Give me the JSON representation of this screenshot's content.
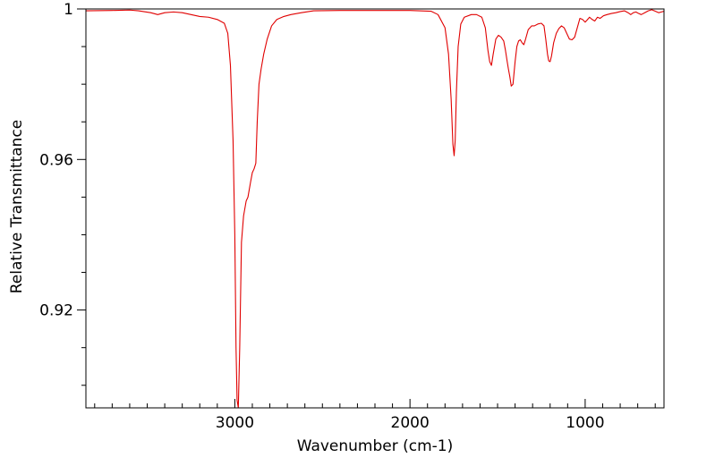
{
  "chart_data": {
    "type": "line",
    "title": "",
    "xlabel": "Wavenumber (cm-1)",
    "ylabel": "Relative Transmittance",
    "xlim": [
      3850,
      550
    ],
    "ylim": [
      0.894,
      1.0
    ],
    "x_reversed": true,
    "grid": false,
    "legend": "none",
    "x_ticks": [
      {
        "value": 3000,
        "label": "3000"
      },
      {
        "value": 2000,
        "label": "2000"
      },
      {
        "value": 1000,
        "label": "1000"
      }
    ],
    "y_ticks": [
      {
        "value": 0.92,
        "label": "0.92"
      },
      {
        "value": 0.96,
        "label": "0.96"
      },
      {
        "value": 1.0,
        "label": "1"
      }
    ],
    "x_minor_step": 100,
    "y_minor_step": 0.01,
    "series": [
      {
        "color": "#e00000",
        "points": [
          [
            3850,
            0.9995
          ],
          [
            3700,
            0.9996
          ],
          [
            3600,
            0.9997
          ],
          [
            3550,
            0.9995
          ],
          [
            3480,
            0.999
          ],
          [
            3440,
            0.9985
          ],
          [
            3400,
            0.999
          ],
          [
            3350,
            0.9992
          ],
          [
            3300,
            0.999
          ],
          [
            3250,
            0.9985
          ],
          [
            3200,
            0.998
          ],
          [
            3150,
            0.9978
          ],
          [
            3100,
            0.9972
          ],
          [
            3060,
            0.9962
          ],
          [
            3040,
            0.9935
          ],
          [
            3025,
            0.985
          ],
          [
            3010,
            0.965
          ],
          [
            3000,
            0.94
          ],
          [
            2993,
            0.91
          ],
          [
            2987,
            0.896
          ],
          [
            2980,
            0.894
          ],
          [
            2972,
            0.91
          ],
          [
            2962,
            0.938
          ],
          [
            2950,
            0.945
          ],
          [
            2935,
            0.949
          ],
          [
            2925,
            0.95
          ],
          [
            2910,
            0.954
          ],
          [
            2900,
            0.9565
          ],
          [
            2890,
            0.9575
          ],
          [
            2880,
            0.959
          ],
          [
            2872,
            0.97
          ],
          [
            2862,
            0.98
          ],
          [
            2850,
            0.984
          ],
          [
            2835,
            0.988
          ],
          [
            2815,
            0.992
          ],
          [
            2790,
            0.9955
          ],
          [
            2760,
            0.9972
          ],
          [
            2720,
            0.998
          ],
          [
            2680,
            0.9985
          ],
          [
            2620,
            0.999
          ],
          [
            2550,
            0.9995
          ],
          [
            2400,
            0.9996
          ],
          [
            2200,
            0.9996
          ],
          [
            2000,
            0.9996
          ],
          [
            1880,
            0.9994
          ],
          [
            1840,
            0.9985
          ],
          [
            1800,
            0.995
          ],
          [
            1780,
            0.988
          ],
          [
            1765,
            0.976
          ],
          [
            1755,
            0.964
          ],
          [
            1748,
            0.961
          ],
          [
            1742,
            0.965
          ],
          [
            1735,
            0.978
          ],
          [
            1725,
            0.99
          ],
          [
            1710,
            0.996
          ],
          [
            1690,
            0.9978
          ],
          [
            1650,
            0.9985
          ],
          [
            1620,
            0.9985
          ],
          [
            1590,
            0.9978
          ],
          [
            1570,
            0.995
          ],
          [
            1555,
            0.989
          ],
          [
            1545,
            0.986
          ],
          [
            1535,
            0.985
          ],
          [
            1525,
            0.988
          ],
          [
            1510,
            0.992
          ],
          [
            1495,
            0.993
          ],
          [
            1480,
            0.9925
          ],
          [
            1465,
            0.9915
          ],
          [
            1455,
            0.989
          ],
          [
            1445,
            0.986
          ],
          [
            1438,
            0.984
          ],
          [
            1430,
            0.982
          ],
          [
            1422,
            0.9795
          ],
          [
            1412,
            0.98
          ],
          [
            1400,
            0.986
          ],
          [
            1390,
            0.99
          ],
          [
            1380,
            0.9915
          ],
          [
            1370,
            0.9918
          ],
          [
            1360,
            0.991
          ],
          [
            1350,
            0.9905
          ],
          [
            1340,
            0.992
          ],
          [
            1325,
            0.9945
          ],
          [
            1305,
            0.9955
          ],
          [
            1290,
            0.9955
          ],
          [
            1270,
            0.996
          ],
          [
            1250,
            0.9962
          ],
          [
            1235,
            0.9955
          ],
          [
            1225,
            0.992
          ],
          [
            1215,
            0.988
          ],
          [
            1208,
            0.9862
          ],
          [
            1200,
            0.986
          ],
          [
            1192,
            0.9875
          ],
          [
            1180,
            0.991
          ],
          [
            1165,
            0.9935
          ],
          [
            1150,
            0.9948
          ],
          [
            1135,
            0.9955
          ],
          [
            1120,
            0.995
          ],
          [
            1105,
            0.9935
          ],
          [
            1090,
            0.992
          ],
          [
            1075,
            0.9918
          ],
          [
            1060,
            0.9925
          ],
          [
            1045,
            0.995
          ],
          [
            1030,
            0.9975
          ],
          [
            1015,
            0.9972
          ],
          [
            1000,
            0.9965
          ],
          [
            990,
            0.997
          ],
          [
            975,
            0.9978
          ],
          [
            960,
            0.9972
          ],
          [
            945,
            0.9968
          ],
          [
            930,
            0.9978
          ],
          [
            915,
            0.9975
          ],
          [
            895,
            0.9982
          ],
          [
            875,
            0.9985
          ],
          [
            850,
            0.9988
          ],
          [
            825,
            0.999
          ],
          [
            800,
            0.9993
          ],
          [
            775,
            0.9995
          ],
          [
            755,
            0.999
          ],
          [
            740,
            0.9985
          ],
          [
            725,
            0.999
          ],
          [
            710,
            0.9992
          ],
          [
            695,
            0.9988
          ],
          [
            680,
            0.9985
          ],
          [
            660,
            0.999
          ],
          [
            640,
            0.9995
          ],
          [
            620,
            0.9998
          ],
          [
            600,
            0.9994
          ],
          [
            580,
            0.999
          ],
          [
            565,
            0.9992
          ],
          [
            550,
            0.9994
          ]
        ]
      }
    ]
  }
}
